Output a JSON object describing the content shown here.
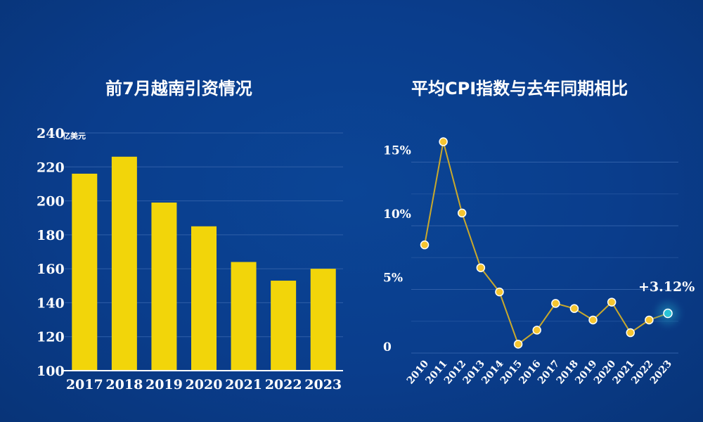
{
  "chart_data": [
    {
      "type": "bar",
      "title": "前7月越南引资情况",
      "unit": "亿美元",
      "categories": [
        "2017",
        "2018",
        "2019",
        "2020",
        "2021",
        "2022",
        "2023"
      ],
      "values": [
        216,
        226,
        199,
        185,
        164,
        153,
        160
      ],
      "ylim": [
        100,
        240
      ],
      "yticks": [
        "100",
        "120",
        "140",
        "160",
        "180",
        "200",
        "220",
        "240"
      ],
      "grid": true,
      "colors": {
        "bar": "#f2d50a",
        "grid": "#2f5fa8",
        "axis": "#ffffff"
      }
    },
    {
      "type": "line",
      "title": "平均CPI指数与去年同期相比",
      "categories": [
        "2010",
        "2011",
        "2012",
        "2013",
        "2014",
        "2015",
        "2016",
        "2017",
        "2018",
        "2019",
        "2020",
        "2021",
        "2022",
        "2023"
      ],
      "values": [
        8.5,
        16.6,
        11.0,
        6.7,
        4.8,
        0.7,
        1.8,
        3.9,
        3.5,
        2.6,
        4.0,
        1.6,
        2.6,
        3.12
      ],
      "ylim": [
        0,
        18
      ],
      "yticks": [
        "0",
        "5%",
        "10%",
        "15%"
      ],
      "annotation": "+3.12%",
      "grid": true,
      "colors": {
        "line": "#c9a92c",
        "marker": "#f5c531",
        "highlight": "#29c3d6",
        "grid": "#2f5fa8"
      }
    }
  ]
}
